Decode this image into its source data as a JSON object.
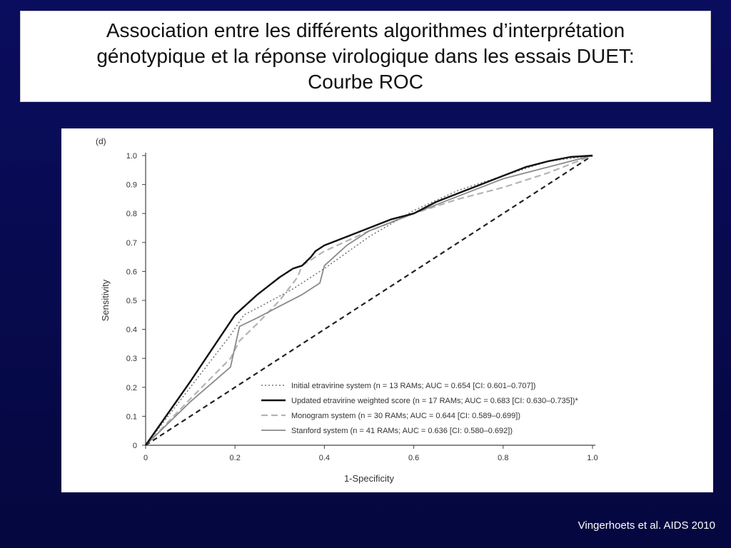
{
  "slide": {
    "title_lines": [
      "Association entre les différents algorithmes d’interprétation",
      "génotypique et la réponse virologique dans les essais  DUET:",
      "Courbe ROC"
    ],
    "credit": "Vingerhoets et al. AIDS 2010"
  },
  "colors": {
    "background": "#0a0d5e",
    "panel": "#ffffff",
    "initial": "#777777",
    "updated": "#111111",
    "monogram": "#b4b4b4",
    "stanford": "#8a8a8a",
    "reference": "#222222"
  },
  "chart_data": {
    "type": "line",
    "panel_label": "(d)",
    "xlabel": "1-Specificity",
    "ylabel": "Sensitivity",
    "xlim": [
      0,
      1.0
    ],
    "ylim": [
      0,
      1.0
    ],
    "x_ticks": [
      "0",
      "0.2",
      "0.4",
      "0.6",
      "0.8",
      "1.0"
    ],
    "y_ticks": [
      "0",
      "0.1",
      "0.2",
      "0.3",
      "0.4",
      "0.5",
      "0.6",
      "0.7",
      "0.8",
      "0.9",
      "1.0"
    ],
    "grid": false,
    "legend_position": "bottom-right",
    "series": [
      {
        "key": "initial",
        "name": "Initial etravirine system (n = 13 RAMs; AUC = 0.654 [CI: 0.601–0.707])",
        "style": "dotted",
        "x": [
          0,
          0.1,
          0.19,
          0.22,
          0.27,
          0.33,
          0.4,
          0.5,
          0.6,
          0.7,
          0.8,
          0.9,
          1.0
        ],
        "y": [
          0,
          0.2,
          0.38,
          0.45,
          0.49,
          0.54,
          0.61,
          0.72,
          0.81,
          0.88,
          0.93,
          0.98,
          1.0
        ]
      },
      {
        "key": "updated",
        "name": "Updated etravirine weighted score (n = 17 RAMs; AUC = 0.683 [CI: 0.630–0.735])*",
        "style": "solid-bold",
        "x": [
          0,
          0.1,
          0.2,
          0.25,
          0.3,
          0.33,
          0.35,
          0.37,
          0.38,
          0.4,
          0.45,
          0.5,
          0.55,
          0.6,
          0.65,
          0.7,
          0.75,
          0.8,
          0.85,
          0.9,
          0.95,
          1.0
        ],
        "y": [
          0,
          0.22,
          0.45,
          0.52,
          0.58,
          0.61,
          0.62,
          0.65,
          0.67,
          0.69,
          0.72,
          0.75,
          0.78,
          0.8,
          0.84,
          0.87,
          0.9,
          0.93,
          0.96,
          0.98,
          0.995,
          1.0
        ]
      },
      {
        "key": "monogram",
        "name": "Monogram system (n = 30 RAMs; AUC = 0.644 [CI: 0.589–0.699])",
        "style": "dashed-light",
        "x": [
          0,
          0.1,
          0.19,
          0.21,
          0.25,
          0.3,
          0.34,
          0.35,
          0.4,
          0.5,
          0.6,
          0.7,
          0.8,
          0.9,
          1.0
        ],
        "y": [
          0,
          0.16,
          0.3,
          0.36,
          0.42,
          0.5,
          0.58,
          0.62,
          0.67,
          0.74,
          0.8,
          0.85,
          0.89,
          0.94,
          1.0
        ]
      },
      {
        "key": "stanford",
        "name": "Stanford system (n = 41 RAMs; AUC = 0.636 [CI: 0.580–0.692])",
        "style": "solid-light",
        "x": [
          0,
          0.1,
          0.19,
          0.21,
          0.25,
          0.3,
          0.35,
          0.39,
          0.4,
          0.45,
          0.5,
          0.6,
          0.7,
          0.8,
          0.9,
          1.0
        ],
        "y": [
          0,
          0.15,
          0.27,
          0.41,
          0.44,
          0.48,
          0.52,
          0.56,
          0.62,
          0.69,
          0.74,
          0.8,
          0.86,
          0.92,
          0.96,
          1.0
        ]
      },
      {
        "key": "reference",
        "name": "",
        "style": "dashed-diagonal",
        "x": [
          0,
          1.0
        ],
        "y": [
          0,
          1.0
        ]
      }
    ]
  }
}
